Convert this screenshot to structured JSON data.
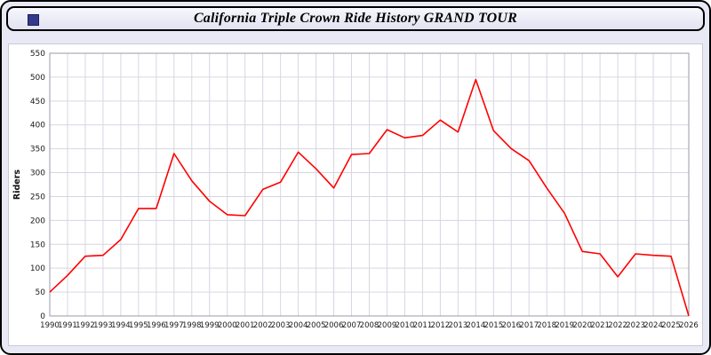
{
  "window": {
    "title": "California Triple Crown Ride History GRAND TOUR"
  },
  "colors": {
    "line": "#ff0000",
    "grid": "#d6d6e2",
    "plot_border": "#9a9aa8",
    "page_background": "#e9e9f6",
    "corner_square": "#333a8c",
    "tick_text": "#1a1a1a"
  },
  "chart_data": {
    "type": "line",
    "title": "California Triple Crown Ride History GRAND TOUR",
    "xlabel": "",
    "ylabel": "Riders",
    "ylim": [
      0,
      550
    ],
    "ytick_step": 50,
    "yticks": [
      0,
      50,
      100,
      150,
      200,
      250,
      300,
      350,
      400,
      450,
      500,
      550
    ],
    "grid": true,
    "legend_position": "none",
    "x": [
      1990,
      1991,
      1992,
      1993,
      1994,
      1995,
      1996,
      1997,
      1998,
      1999,
      2000,
      2001,
      2002,
      2003,
      2004,
      2005,
      2006,
      2007,
      2008,
      2009,
      2010,
      2011,
      2012,
      2013,
      2014,
      2015,
      2016,
      2017,
      2018,
      2019,
      2020,
      2021,
      2022,
      2023,
      2024,
      2025,
      2026
    ],
    "series": [
      {
        "name": "Riders",
        "color": "#ff0000",
        "values": [
          50,
          85,
          125,
          127,
          160,
          225,
          225,
          340,
          283,
          240,
          212,
          210,
          265,
          280,
          343,
          308,
          268,
          338,
          340,
          390,
          373,
          378,
          410,
          385,
          495,
          388,
          350,
          325,
          268,
          215,
          135,
          130,
          82,
          130,
          127,
          125,
          0
        ]
      }
    ]
  }
}
